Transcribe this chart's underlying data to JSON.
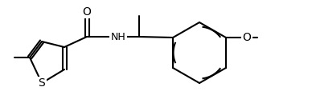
{
  "background_color": "#ffffff",
  "line_color": "#000000",
  "line_width": 1.5,
  "font_size": 9,
  "atoms": {
    "S_label": "S",
    "O_label": "O",
    "N_label": "NH",
    "Me1_label": "",
    "Me2_label": ""
  },
  "figsize": [
    3.88,
    1.34
  ],
  "dpi": 100
}
